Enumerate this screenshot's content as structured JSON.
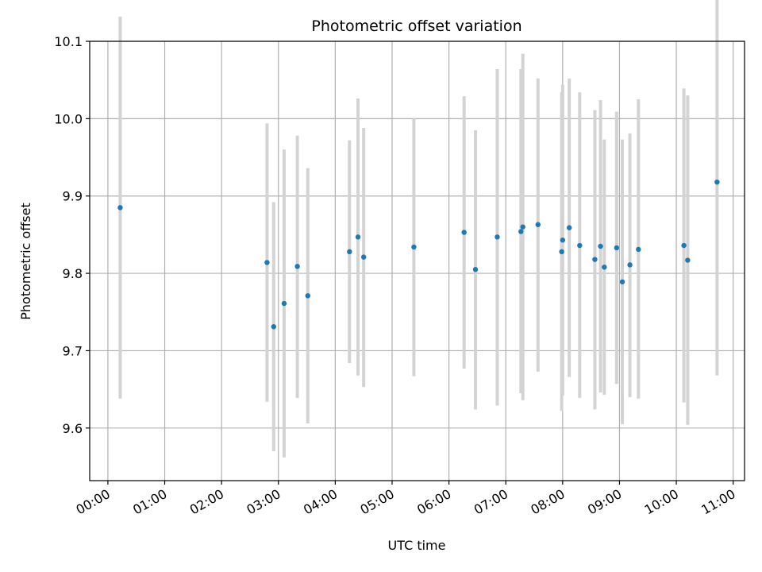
{
  "chart_data": {
    "type": "scatter",
    "title": "Photometric offset variation",
    "xlabel": "UTC time",
    "ylabel": "Photometric offset",
    "x_unit": "hours (UTC)",
    "xlim": [
      -0.32,
      11.2
    ],
    "ylim": [
      9.532,
      10.1
    ],
    "x_ticks": [
      "00:00",
      "01:00",
      "02:00",
      "03:00",
      "04:00",
      "05:00",
      "06:00",
      "07:00",
      "08:00",
      "09:00",
      "10:00",
      "11:00"
    ],
    "y_ticks": [
      "9.6",
      "9.7",
      "9.8",
      "9.9",
      "10.0",
      "10.1"
    ],
    "y_tick_values": [
      9.6,
      9.7,
      9.8,
      9.9,
      10.0,
      10.1
    ],
    "grid": true,
    "colors": {
      "point": "#1f77b4",
      "errorbar": "#d3d3d3",
      "grid": "#b0b0b0"
    },
    "points": [
      {
        "x": "00:13",
        "y": 9.885,
        "ymin": 9.638,
        "ymax": 10.132
      },
      {
        "x": "02:48",
        "y": 9.814,
        "ymin": 9.634,
        "ymax": 9.994
      },
      {
        "x": "02:55",
        "y": 9.731,
        "ymin": 9.57,
        "ymax": 9.892
      },
      {
        "x": "03:06",
        "y": 9.761,
        "ymin": 9.562,
        "ymax": 9.96
      },
      {
        "x": "03:20",
        "y": 9.809,
        "ymin": 9.639,
        "ymax": 9.978
      },
      {
        "x": "03:31",
        "y": 9.771,
        "ymin": 9.606,
        "ymax": 9.936
      },
      {
        "x": "04:15",
        "y": 9.828,
        "ymin": 9.684,
        "ymax": 9.972
      },
      {
        "x": "04:24",
        "y": 9.847,
        "ymin": 9.668,
        "ymax": 10.026
      },
      {
        "x": "04:30",
        "y": 9.821,
        "ymin": 9.653,
        "ymax": 9.988
      },
      {
        "x": "05:23",
        "y": 9.834,
        "ymin": 9.667,
        "ymax": 10.0
      },
      {
        "x": "06:16",
        "y": 9.853,
        "ymin": 9.677,
        "ymax": 10.029
      },
      {
        "x": "06:28",
        "y": 9.805,
        "ymin": 9.624,
        "ymax": 9.985
      },
      {
        "x": "06:51",
        "y": 9.847,
        "ymin": 9.629,
        "ymax": 10.064
      },
      {
        "x": "07:16",
        "y": 9.854,
        "ymin": 9.645,
        "ymax": 10.064
      },
      {
        "x": "07:18",
        "y": 9.86,
        "ymin": 9.636,
        "ymax": 10.084
      },
      {
        "x": "07:34",
        "y": 9.863,
        "ymin": 9.673,
        "ymax": 10.052
      },
      {
        "x": "07:59",
        "y": 9.828,
        "ymin": 9.622,
        "ymax": 10.034
      },
      {
        "x": "08:00",
        "y": 9.843,
        "ymin": 9.642,
        "ymax": 10.044
      },
      {
        "x": "08:07",
        "y": 9.859,
        "ymin": 9.666,
        "ymax": 10.052
      },
      {
        "x": "08:18",
        "y": 9.836,
        "ymin": 9.639,
        "ymax": 10.034
      },
      {
        "x": "08:34",
        "y": 9.818,
        "ymin": 9.624,
        "ymax": 10.011
      },
      {
        "x": "08:40",
        "y": 9.835,
        "ymin": 9.646,
        "ymax": 10.024
      },
      {
        "x": "08:44",
        "y": 9.808,
        "ymin": 9.643,
        "ymax": 9.973
      },
      {
        "x": "08:57",
        "y": 9.833,
        "ymin": 9.657,
        "ymax": 10.009
      },
      {
        "x": "09:03",
        "y": 9.789,
        "ymin": 9.605,
        "ymax": 9.973
      },
      {
        "x": "09:11",
        "y": 9.811,
        "ymin": 9.64,
        "ymax": 9.981
      },
      {
        "x": "09:20",
        "y": 9.831,
        "ymin": 9.638,
        "ymax": 10.025
      },
      {
        "x": "10:08",
        "y": 9.836,
        "ymin": 9.633,
        "ymax": 10.039
      },
      {
        "x": "10:12",
        "y": 9.817,
        "ymin": 9.604,
        "ymax": 10.03
      },
      {
        "x": "10:43",
        "y": 9.918,
        "ymin": 9.668,
        "ymax": 10.167
      }
    ]
  }
}
